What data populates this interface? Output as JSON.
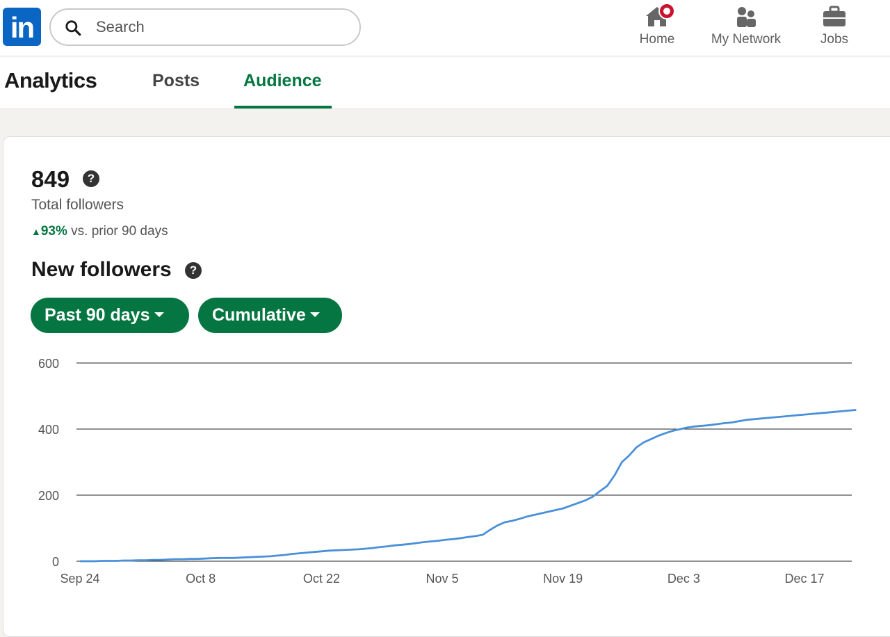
{
  "nav": {
    "logo_text": "in",
    "search_placeholder": "Search",
    "items": [
      {
        "label": "Home",
        "icon": "home-icon",
        "has_notification": true
      },
      {
        "label": "My Network",
        "icon": "people-icon"
      },
      {
        "label": "Jobs",
        "icon": "briefcase-icon"
      }
    ]
  },
  "subnav": {
    "title": "Analytics",
    "tabs": [
      {
        "label": "Posts",
        "active": false
      },
      {
        "label": "Audience",
        "active": true
      }
    ]
  },
  "summary": {
    "total": "849",
    "total_label": "Total followers",
    "change_pct": "93%",
    "change_text": "vs. prior 90 days",
    "section_title": "New followers",
    "range_filter": "Past 90 days",
    "mode_filter": "Cumulative"
  },
  "colors": {
    "brand": "#0a66c2",
    "accent_green": "#057642",
    "line": "#4a90d9",
    "notification": "#cb112d"
  },
  "chart_data": {
    "type": "line",
    "x_tick_labels": [
      "Sep 24",
      "Oct 8",
      "Oct 22",
      "Nov 5",
      "Nov 19",
      "Dec 3",
      "Dec 17"
    ],
    "y_ticks": [
      0,
      200,
      400,
      600
    ],
    "ylim": [
      0,
      600
    ],
    "x_start": "2023-09-24",
    "grid": true,
    "series": [
      {
        "values": [
          0,
          0,
          0,
          1,
          1,
          1,
          2,
          2,
          3,
          3,
          4,
          4,
          5,
          6,
          6,
          7,
          7,
          8,
          9,
          10,
          10,
          10,
          11,
          12,
          13,
          14,
          15,
          17,
          19,
          22,
          24,
          26,
          28,
          30,
          32,
          33,
          34,
          35,
          36,
          38,
          40,
          43,
          45,
          48,
          50,
          52,
          55,
          58,
          60,
          62,
          65,
          67,
          70,
          73,
          76,
          80,
          95,
          108,
          118,
          122,
          128,
          135,
          140,
          145,
          150,
          155,
          160,
          168,
          176,
          184,
          195,
          212,
          228,
          260,
          300,
          320,
          345,
          360,
          370,
          380,
          388,
          395,
          400,
          405,
          408,
          410,
          412,
          415,
          418,
          420,
          424,
          428,
          430,
          432,
          434,
          436,
          438,
          440,
          442,
          444,
          446,
          448,
          450,
          452,
          454,
          456,
          458
        ]
      }
    ]
  }
}
